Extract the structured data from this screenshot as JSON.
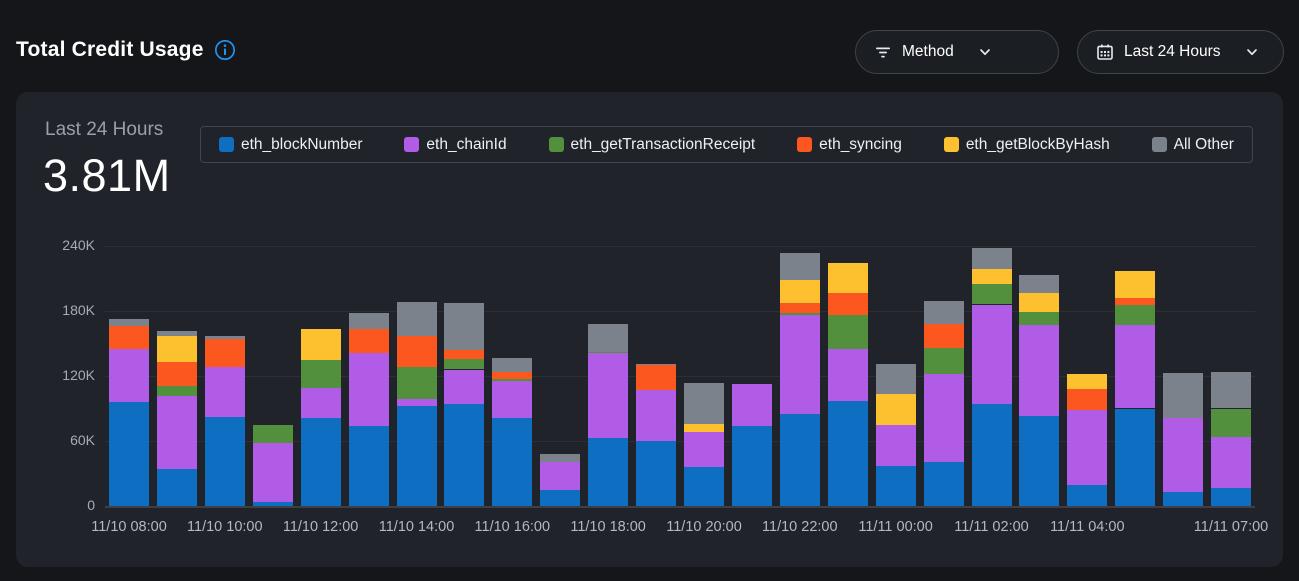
{
  "header": {
    "title": "Total Credit Usage",
    "method_dropdown": {
      "label": "Method"
    },
    "range_dropdown": {
      "label": "Last 24 Hours"
    }
  },
  "panel": {
    "period_label": "Last 24 Hours",
    "total_value": "3.81M"
  },
  "colors": {
    "page_bg": "#141619",
    "panel_bg": "#202329",
    "accent_info": "#2196f3",
    "grid": "#2b2f36",
    "axis": "#3d4147"
  },
  "chart_data": {
    "type": "bar",
    "stacked": true,
    "title": "Total Credit Usage",
    "subtitle_total": "3.81M",
    "xlabel": "",
    "ylabel": "",
    "ylim": [
      0,
      240000
    ],
    "grid": true,
    "legend_position": "top",
    "categories": [
      "11/10 08:00",
      "11/10 09:00",
      "11/10 10:00",
      "11/10 11:00",
      "11/10 12:00",
      "11/10 13:00",
      "11/10 14:00",
      "11/10 15:00",
      "11/10 16:00",
      "11/10 17:00",
      "11/10 18:00",
      "11/10 19:00",
      "11/10 20:00",
      "11/10 21:00",
      "11/10 22:00",
      "11/10 23:00",
      "11/11 00:00",
      "11/11 01:00",
      "11/11 02:00",
      "11/11 03:00",
      "11/11 04:00",
      "11/11 05:00",
      "11/11 06:00",
      "11/11 07:00"
    ],
    "series": [
      {
        "name": "eth_blockNumber",
        "color": "#0d6ec2",
        "values": [
          96000,
          34000,
          82000,
          4000,
          81000,
          74000,
          92000,
          94000,
          81000,
          15000,
          63000,
          60000,
          36000,
          74000,
          85000,
          97000,
          37000,
          41000,
          94000,
          83000,
          19000,
          90000,
          13000,
          17000
        ]
      },
      {
        "name": "eth_chainId",
        "color": "#b15ce6",
        "values": [
          49000,
          68000,
          46000,
          54000,
          28000,
          67000,
          7000,
          32000,
          34000,
          26000,
          78000,
          47000,
          32000,
          39000,
          91000,
          48000,
          38000,
          81000,
          92000,
          84000,
          70000,
          77000,
          68000,
          47000
        ]
      },
      {
        "name": "eth_getTransactionReceipt",
        "color": "#53903e",
        "values": [
          0,
          9000,
          0,
          17000,
          26000,
          0,
          29000,
          10000,
          2000,
          0,
          1000,
          0,
          0,
          0,
          2000,
          31000,
          0,
          24000,
          19000,
          12000,
          0,
          19000,
          0,
          26000
        ]
      },
      {
        "name": "eth_syncing",
        "color": "#fb571f",
        "values": [
          21000,
          22000,
          26000,
          0,
          0,
          22000,
          29000,
          8000,
          7000,
          0,
          0,
          23000,
          0,
          0,
          9000,
          21000,
          0,
          22000,
          0,
          0,
          19000,
          6000,
          0,
          0
        ]
      },
      {
        "name": "eth_getBlockByHash",
        "color": "#fdc02f",
        "values": [
          0,
          24000,
          0,
          0,
          28000,
          0,
          0,
          0,
          0,
          0,
          0,
          0,
          8000,
          0,
          22000,
          27000,
          28000,
          0,
          14000,
          18000,
          14000,
          25000,
          0,
          0
        ]
      },
      {
        "name": "All Other",
        "color": "#7b828c",
        "values": [
          7000,
          5000,
          3000,
          0,
          0,
          15000,
          31000,
          43000,
          13000,
          7000,
          26000,
          1000,
          38000,
          0,
          25000,
          0,
          28000,
          21000,
          19000,
          16000,
          0,
          0,
          42000,
          34000
        ]
      }
    ],
    "yticks": [
      {
        "v": 0,
        "label": "0"
      },
      {
        "v": 60000,
        "label": "60K"
      },
      {
        "v": 120000,
        "label": "120K"
      },
      {
        "v": 180000,
        "label": "180K"
      },
      {
        "v": 240000,
        "label": "240K"
      }
    ],
    "xticks": [
      {
        "i": 0,
        "label": "11/10 08:00"
      },
      {
        "i": 2,
        "label": "11/10 10:00"
      },
      {
        "i": 4,
        "label": "11/10 12:00"
      },
      {
        "i": 6,
        "label": "11/10 14:00"
      },
      {
        "i": 8,
        "label": "11/10 16:00"
      },
      {
        "i": 10,
        "label": "11/10 18:00"
      },
      {
        "i": 12,
        "label": "11/10 20:00"
      },
      {
        "i": 14,
        "label": "11/10 22:00"
      },
      {
        "i": 16,
        "label": "11/11 00:00"
      },
      {
        "i": 18,
        "label": "11/11 02:00"
      },
      {
        "i": 20,
        "label": "11/11 04:00"
      },
      {
        "i": 23,
        "label": "11/11 07:00"
      }
    ]
  }
}
